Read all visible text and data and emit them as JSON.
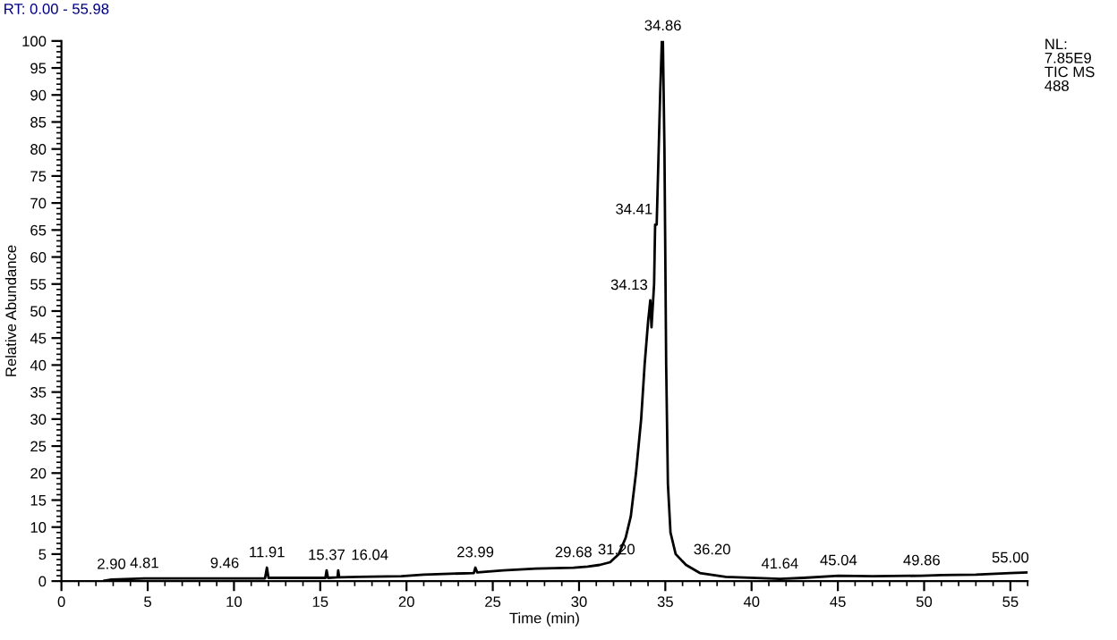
{
  "chart_data": {
    "type": "line",
    "xlabel": "Time (min)",
    "ylabel": "Relative Abundance",
    "xlim": [
      0,
      56
    ],
    "ylim": [
      0,
      100
    ],
    "xticks": [
      0,
      5,
      10,
      15,
      20,
      25,
      30,
      35,
      40,
      45,
      50,
      55
    ],
    "yticks": [
      0,
      5,
      10,
      15,
      20,
      25,
      30,
      35,
      40,
      45,
      50,
      55,
      60,
      65,
      70,
      75,
      80,
      85,
      90,
      95,
      100
    ],
    "grid": false,
    "marker": "none",
    "line_style": "solid",
    "series": [
      {
        "color": "#000000",
        "x": [
          2.5,
          2.9,
          4.81,
          9.46,
          11.8,
          11.91,
          12.0,
          15.3,
          15.37,
          15.45,
          16.0,
          16.04,
          16.1,
          17.2,
          19.7,
          21.0,
          23.9,
          23.99,
          24.1,
          25.6,
          27.5,
          29.68,
          30.5,
          31.2,
          31.8,
          32.3,
          32.7,
          33.0,
          33.3,
          33.6,
          33.8,
          34.0,
          34.13,
          34.2,
          34.35,
          34.41,
          34.5,
          34.6,
          34.7,
          34.8,
          34.86,
          34.95,
          35.05,
          35.15,
          35.3,
          35.6,
          36.2,
          37.0,
          38.5,
          41.0,
          41.64,
          43.0,
          45.04,
          47.0,
          49.86,
          51.0,
          53.0,
          55.0,
          56.0
        ],
        "values": [
          0.1,
          0.3,
          0.5,
          0.5,
          0.5,
          2.5,
          0.6,
          0.6,
          2.0,
          0.6,
          0.7,
          2.0,
          0.7,
          0.8,
          0.9,
          1.2,
          1.5,
          2.5,
          1.6,
          2.0,
          2.3,
          2.5,
          2.7,
          3.0,
          3.5,
          5.0,
          8.0,
          12.0,
          20.0,
          30.0,
          40.0,
          48.0,
          52.0,
          47.0,
          55.0,
          66.0,
          66.0,
          78.0,
          90.0,
          100.0,
          100.0,
          80.0,
          40.0,
          18.0,
          9.0,
          5.0,
          3.0,
          1.5,
          0.8,
          0.5,
          0.4,
          0.6,
          1.0,
          0.9,
          1.0,
          1.1,
          1.2,
          1.5,
          1.6
        ]
      }
    ],
    "annotations": [
      "RT: 0.00 - 55.98",
      "NL:\n7.85E9\nTIC MS\n488",
      {
        "text": "2.90",
        "x": 2.9,
        "y": 0.3
      },
      {
        "text": "4.81",
        "x": 4.81,
        "y": 0.5
      },
      {
        "text": "9.46",
        "x": 9.46,
        "y": 0.5
      },
      {
        "text": "11.91",
        "x": 11.91,
        "y": 2.5
      },
      {
        "text": "15.37",
        "x": 15.37,
        "y": 2.0
      },
      {
        "text": "16.04",
        "x": 16.04,
        "y": 2.0
      },
      {
        "text": "23.99",
        "x": 23.99,
        "y": 2.5
      },
      {
        "text": "29.68",
        "x": 29.68,
        "y": 2.5
      },
      {
        "text": "31.20",
        "x": 31.2,
        "y": 3.0
      },
      {
        "text": "34.13",
        "x": 34.13,
        "y": 52.0
      },
      {
        "text": "34.41",
        "x": 34.41,
        "y": 66.0
      },
      {
        "text": "34.86",
        "x": 34.86,
        "y": 100.0
      },
      {
        "text": "36.20",
        "x": 36.2,
        "y": 3.0
      },
      {
        "text": "41.64",
        "x": 41.64,
        "y": 0.4
      },
      {
        "text": "45.04",
        "x": 45.04,
        "y": 1.0
      },
      {
        "text": "49.86",
        "x": 49.86,
        "y": 1.0
      },
      {
        "text": "55.00",
        "x": 55.0,
        "y": 1.5
      }
    ]
  }
}
